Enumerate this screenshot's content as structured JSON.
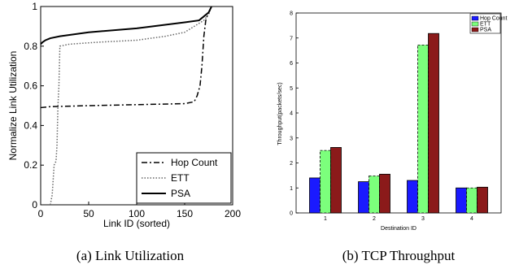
{
  "chart_data": [
    {
      "type": "line",
      "xlabel": "Link ID (sorted)",
      "ylabel": "Normalize Link Utilization",
      "xlim": [
        0,
        200
      ],
      "ylim": [
        0,
        1
      ],
      "xticks": [
        "0",
        "50",
        "100",
        "150",
        "200"
      ],
      "yticks": [
        "0",
        "0.2",
        "0.4",
        "0.6",
        "0.8",
        "1"
      ],
      "legend_position": "bottom-right",
      "series": [
        {
          "name": "Hop Count",
          "style": "dashdot",
          "x": [
            0,
            10,
            50,
            100,
            150,
            160,
            163,
            166,
            168,
            170,
            172,
            174,
            176,
            178
          ],
          "y": [
            0.49,
            0.495,
            0.5,
            0.505,
            0.51,
            0.52,
            0.55,
            0.6,
            0.7,
            0.85,
            0.93,
            0.96,
            0.98,
            1.0
          ]
        },
        {
          "name": "ETT",
          "style": "dotted",
          "x": [
            10,
            12,
            14,
            16,
            17,
            18,
            19,
            20,
            30,
            60,
            100,
            130,
            150,
            160,
            170,
            175,
            178
          ],
          "y": [
            0.0,
            0.05,
            0.2,
            0.22,
            0.3,
            0.5,
            0.6,
            0.8,
            0.81,
            0.82,
            0.83,
            0.85,
            0.87,
            0.9,
            0.93,
            0.96,
            1.0
          ]
        },
        {
          "name": "PSA",
          "style": "solid",
          "x": [
            0,
            2,
            5,
            10,
            20,
            50,
            100,
            150,
            165,
            170,
            175,
            178
          ],
          "y": [
            0.81,
            0.82,
            0.83,
            0.84,
            0.85,
            0.87,
            0.89,
            0.92,
            0.93,
            0.95,
            0.97,
            1.0
          ]
        }
      ],
      "caption": "(a) Link Utilization"
    },
    {
      "type": "bar",
      "xlabel": "Destination ID",
      "ylabel": "Throughput(packets/sec)",
      "categories": [
        "1",
        "2",
        "3",
        "4"
      ],
      "ylim": [
        0,
        8
      ],
      "yticks": [
        "0",
        "1",
        "2",
        "3",
        "4",
        "5",
        "6",
        "7",
        "8"
      ],
      "legend_position": "top-right",
      "series": [
        {
          "name": "Hop Count",
          "color": "#1a1aff",
          "values": [
            1.4,
            1.25,
            1.3,
            1.0
          ]
        },
        {
          "name": "ETT",
          "color": "#7cff7c",
          "values": [
            2.5,
            1.48,
            6.72,
            1.0
          ]
        },
        {
          "name": "PSA",
          "color": "#8b1a1a",
          "values": [
            2.62,
            1.55,
            7.18,
            1.03
          ]
        }
      ],
      "caption": "(b) TCP Throughput"
    }
  ]
}
